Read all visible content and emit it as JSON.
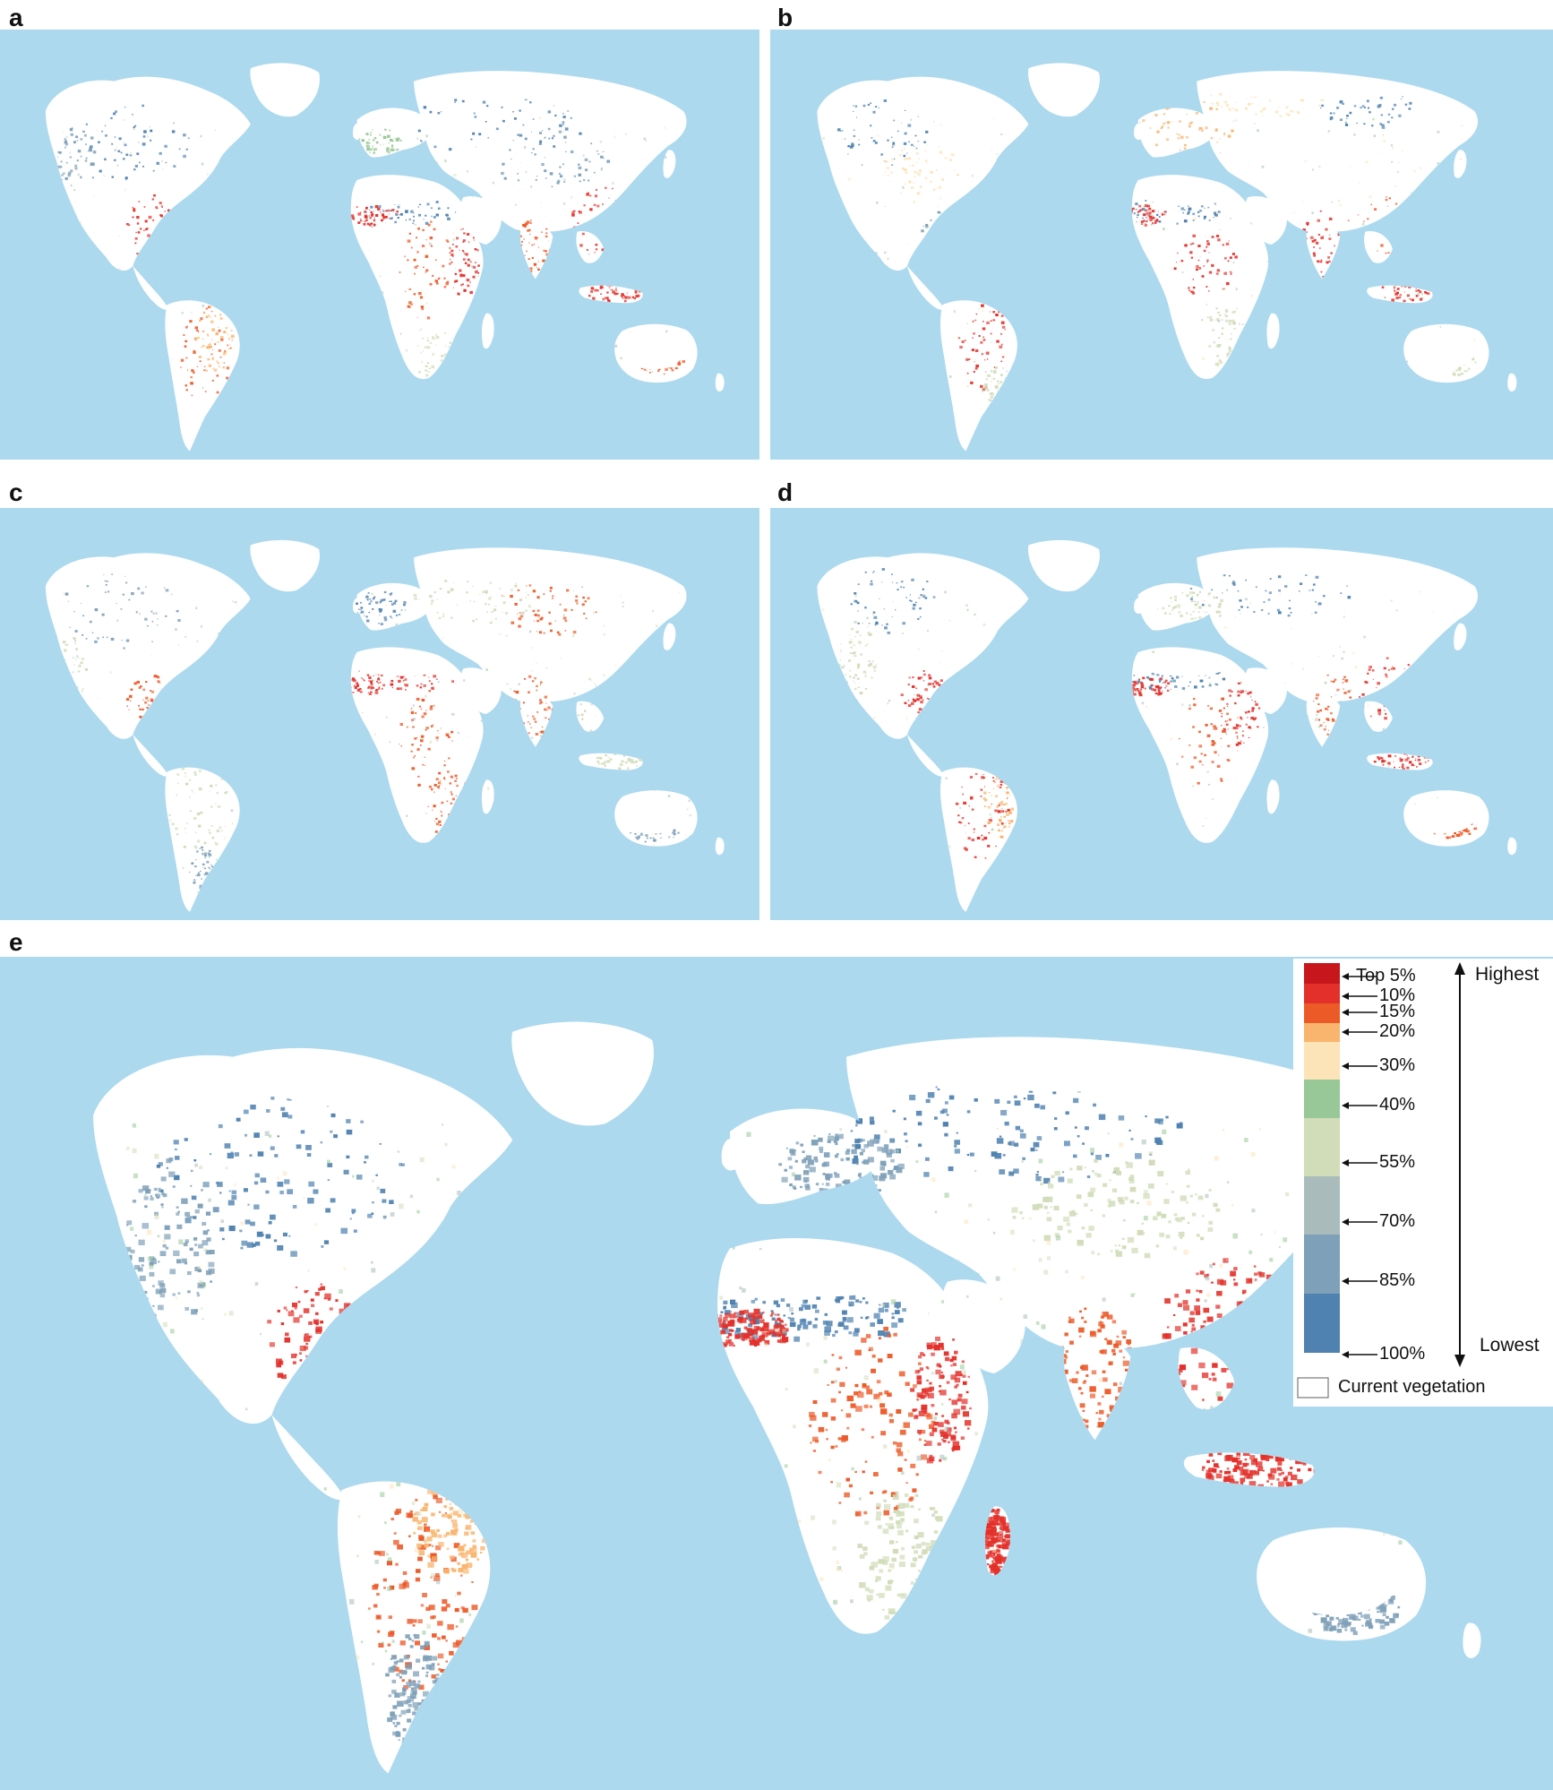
{
  "panels": [
    {
      "id": "a",
      "label": "a"
    },
    {
      "id": "b",
      "label": "b"
    },
    {
      "id": "c",
      "label": "c"
    },
    {
      "id": "d",
      "label": "d"
    },
    {
      "id": "e",
      "label": "e"
    }
  ],
  "colors": {
    "ocean": "#acd9ee",
    "land": "#ffffff",
    "top5": "#c8161d",
    "p10": "#e3302a",
    "p15": "#ec5a28",
    "p20": "#f9b56e",
    "p30": "#fde3b8",
    "p40": "#98c898",
    "p55": "#d1dcb9",
    "p70": "#a9bcbb",
    "p85": "#7ea0b8",
    "p100": "#4f82b0"
  },
  "legend": {
    "highest": "Highest",
    "lowest": "Lowest",
    "ticks": [
      "Top 5%",
      "10%",
      "15%",
      "20%",
      "30%",
      "40%",
      "55%",
      "70%",
      "85%",
      "100%"
    ],
    "bands": [
      {
        "color": "#c8161d"
      },
      {
        "color": "#e3302a"
      },
      {
        "color": "#ec5a28"
      },
      {
        "color": "#f9b56e"
      },
      {
        "color": "#fde3b8"
      },
      {
        "color": "#98c898"
      },
      {
        "color": "#d1dcb9"
      },
      {
        "color": "#a9bcbb"
      },
      {
        "color": "#7ea0b8"
      },
      {
        "color": "#4f82b0"
      }
    ],
    "current_vegetation": "Current vegetation"
  }
}
